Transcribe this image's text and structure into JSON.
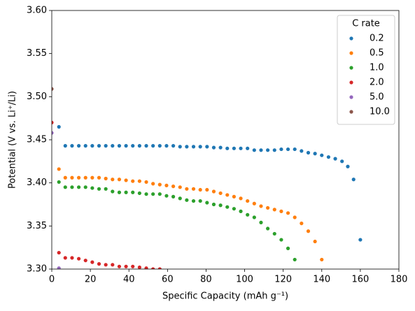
{
  "chart_data": {
    "type": "scatter",
    "xlabel": "Specific Capacity (mAh g⁻¹)",
    "ylabel": "Potential (V vs. Li⁺/Li)",
    "xlim": [
      0,
      180
    ],
    "xticks": [
      0,
      20,
      40,
      60,
      80,
      100,
      120,
      140,
      160,
      180
    ],
    "ylim": [
      3.3,
      3.6
    ],
    "yticks": [
      {
        "value": 3.3,
        "label": "3.30"
      },
      3.35,
      {
        "value": 3.4,
        "label": "3.40"
      },
      3.45,
      {
        "value": 3.5,
        "label": "3.50"
      },
      3.55,
      {
        "value": 3.6,
        "label": "3.60"
      }
    ],
    "legend_title": "C rate",
    "legend_position": "upper right",
    "grid": false,
    "series": [
      {
        "name": "0.2",
        "color": "#1f77b4",
        "x": [
          3.7,
          7,
          10.5,
          14,
          17.5,
          21,
          24.5,
          28,
          31.5,
          35,
          38.5,
          42,
          45.5,
          49,
          52.5,
          56,
          59.5,
          63,
          66.5,
          70,
          73.5,
          77,
          80.5,
          84,
          87.5,
          91,
          94.5,
          98,
          101.5,
          105,
          108.5,
          112,
          115.5,
          119,
          122.5,
          126,
          129.5,
          133,
          136.5,
          140,
          143.5,
          147,
          150.5,
          153.5,
          156.5,
          160
        ],
        "values": [
          3.465,
          3.443,
          3.443,
          3.443,
          3.443,
          3.443,
          3.443,
          3.443,
          3.443,
          3.443,
          3.443,
          3.443,
          3.443,
          3.443,
          3.443,
          3.443,
          3.443,
          3.443,
          3.442,
          3.442,
          3.442,
          3.442,
          3.442,
          3.441,
          3.441,
          3.44,
          3.44,
          3.44,
          3.44,
          3.438,
          3.438,
          3.438,
          3.438,
          3.439,
          3.439,
          3.439,
          3.437,
          3.435,
          3.434,
          3.432,
          3.43,
          3.428,
          3.425,
          3.419,
          3.404,
          3.334
        ]
      },
      {
        "name": "0.5",
        "color": "#ff7f0e",
        "x": [
          3.7,
          7,
          10.5,
          14,
          17.5,
          21,
          24.5,
          28,
          31.5,
          35,
          38.5,
          42,
          45.5,
          49,
          52.5,
          56,
          59.5,
          63,
          66.5,
          70,
          73.5,
          77,
          80.5,
          84,
          87.5,
          91,
          94.5,
          98,
          101.5,
          105,
          108.5,
          112,
          115.5,
          119,
          122.5,
          126,
          129.5,
          133,
          136.5,
          140
        ],
        "values": [
          3.416,
          3.406,
          3.406,
          3.406,
          3.406,
          3.406,
          3.406,
          3.405,
          3.404,
          3.404,
          3.403,
          3.402,
          3.402,
          3.401,
          3.399,
          3.398,
          3.397,
          3.396,
          3.395,
          3.393,
          3.393,
          3.392,
          3.392,
          3.39,
          3.388,
          3.386,
          3.384,
          3.382,
          3.379,
          3.376,
          3.373,
          3.371,
          3.369,
          3.367,
          3.365,
          3.36,
          3.353,
          3.344,
          3.332,
          3.311
        ]
      },
      {
        "name": "1.0",
        "color": "#2ca02c",
        "x": [
          3.7,
          7,
          10.5,
          14,
          17.5,
          21,
          24.5,
          28,
          31.5,
          35,
          38.5,
          42,
          45.5,
          49,
          52.5,
          56,
          59.5,
          63,
          66.5,
          70,
          73.5,
          77,
          80.5,
          84,
          87.5,
          91,
          94.5,
          98,
          101.5,
          105,
          108.5,
          112,
          115.5,
          119,
          122.5,
          126
        ],
        "values": [
          3.401,
          3.395,
          3.395,
          3.395,
          3.395,
          3.394,
          3.393,
          3.393,
          3.39,
          3.389,
          3.389,
          3.389,
          3.388,
          3.387,
          3.387,
          3.387,
          3.385,
          3.384,
          3.382,
          3.38,
          3.379,
          3.379,
          3.377,
          3.375,
          3.374,
          3.372,
          3.37,
          3.367,
          3.363,
          3.36,
          3.354,
          3.347,
          3.341,
          3.334,
          3.324,
          3.311
        ]
      },
      {
        "name": "2.0",
        "color": "#d62728",
        "x": [
          0,
          3.7,
          7,
          10.5,
          14,
          17.5,
          21,
          24.5,
          28,
          31.5,
          35,
          38.5,
          42,
          45.5,
          49,
          52.5,
          56
        ],
        "values": [
          3.47,
          3.319,
          3.313,
          3.313,
          3.312,
          3.31,
          3.308,
          3.306,
          3.305,
          3.305,
          3.303,
          3.303,
          3.303,
          3.302,
          3.301,
          3.3,
          3.3
        ]
      },
      {
        "name": "5.0",
        "color": "#9467bd",
        "x": [
          0,
          3.7
        ],
        "values": [
          3.458,
          3.301
        ]
      },
      {
        "name": "10.0",
        "color": "#8c564b",
        "x": [
          0
        ],
        "values": [
          3.509
        ]
      }
    ]
  }
}
